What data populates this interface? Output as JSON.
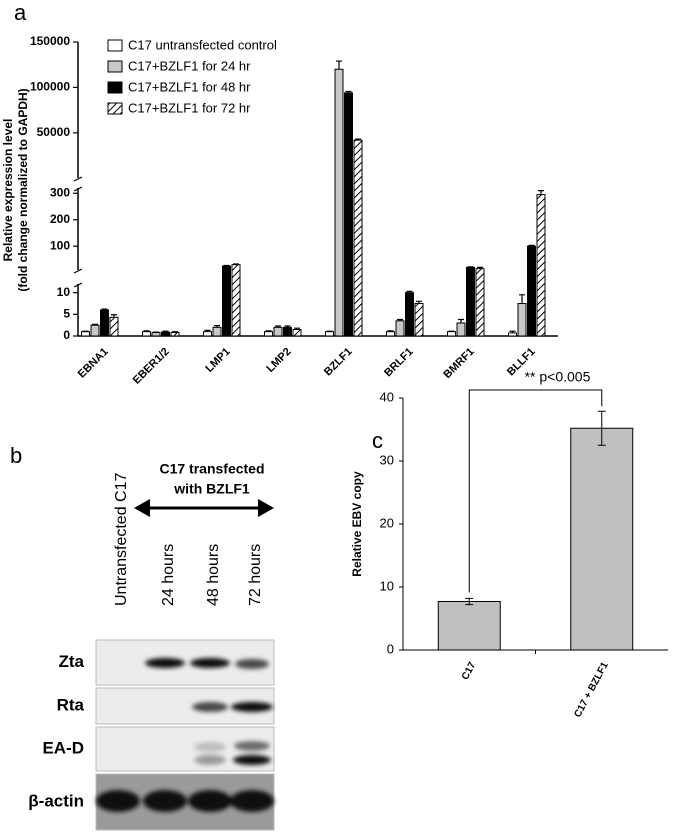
{
  "chart_data": [
    {
      "type": "bar",
      "panel_label": "a",
      "ylabel": [
        "Relative expression level",
        "(fold change normalized to GAPDH)"
      ],
      "categories": [
        "EBNA1",
        "EBER1/2",
        "LMP1",
        "LMP2",
        "BZLF1",
        "BRLF1",
        "BMRF1",
        "BLLF1"
      ],
      "series": [
        {
          "name": "C17 untransfected control",
          "color": "#ffffff",
          "values": [
            1,
            1,
            1,
            1,
            1,
            1,
            1,
            0.7
          ],
          "errors": [
            0.1,
            0.2,
            0.3,
            0.2,
            0.1,
            0.2,
            0.1,
            0.4
          ]
        },
        {
          "name": "C17+BZLF1 for 24 hr",
          "color": "#c8c8c8",
          "values": [
            2.5,
            0.8,
            2,
            2,
            120000,
            3.5,
            3,
            7.5
          ],
          "errors": [
            0.2,
            0.1,
            0.4,
            0.3,
            9000,
            0.3,
            0.8,
            2
          ]
        },
        {
          "name": "C17+BZLF1 for 48 hr",
          "color": "#000000",
          "values": [
            6,
            0.9,
            25,
            2,
            94000,
            10,
            20,
            100
          ],
          "errors": [
            0.2,
            0.2,
            2,
            0.3,
            1500,
            0.3,
            2,
            3
          ]
        },
        {
          "name": "C17+BZLF1 for 72 hr",
          "color": "#ffffff",
          "hatch": true,
          "values": [
            4.3,
            0.8,
            30,
            1.5,
            42000,
            7.5,
            15,
            295
          ],
          "errors": [
            0.6,
            0.2,
            3,
            0.3,
            1200,
            0.5,
            5,
            15
          ]
        }
      ],
      "y_segments": [
        {
          "ylim": [
            0,
            12
          ],
          "yticks": [
            0,
            5,
            10
          ]
        },
        {
          "ylim": [
            10,
            320
          ],
          "yticks": [
            100,
            200,
            300
          ]
        },
        {
          "ylim": [
            320,
            150000
          ],
          "yticks": [
            50000,
            100000,
            150000
          ]
        }
      ]
    },
    {
      "type": "bar",
      "panel_label": "c",
      "ylabel": "Relative EBV copy",
      "categories": [
        "C17",
        "C17 + BZLF1"
      ],
      "values": [
        7.7,
        35.2
      ],
      "errors": [
        0.5,
        2.7
      ],
      "color": "#c0c0c0",
      "ylim": [
        0,
        40
      ],
      "yticks": [
        0,
        10,
        20,
        30,
        40
      ],
      "annotation": "** p<0.005"
    }
  ],
  "blot": {
    "panel_label": "b",
    "lane_labels": [
      "Untransfected C17",
      "24 hours",
      "48 hours",
      "72 hours"
    ],
    "group_label": [
      "C17 transfected",
      "with BZLF1"
    ],
    "rows": [
      "Zta",
      "Rta",
      "EA-D",
      "β-actin"
    ]
  }
}
